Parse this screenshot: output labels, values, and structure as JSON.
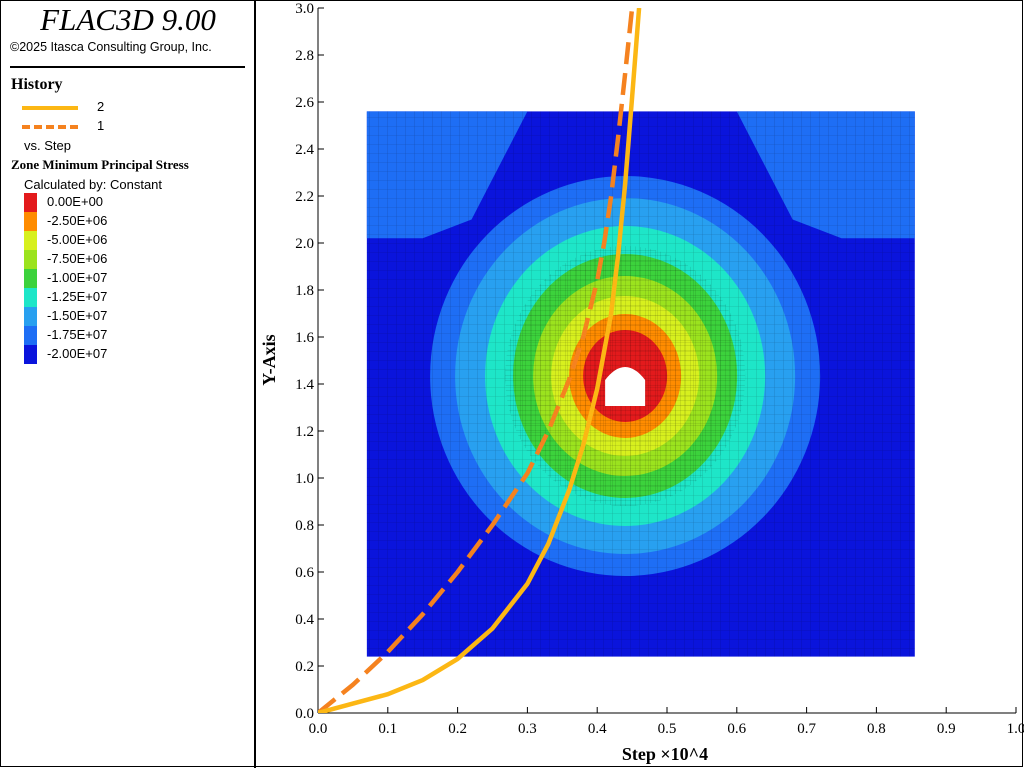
{
  "app": {
    "title": "FLAC3D 9.00",
    "copyright": "©2025 Itasca Consulting Group, Inc."
  },
  "legend": {
    "history_heading": "History",
    "entries": [
      {
        "label": "2",
        "color": "#fcb714",
        "style": "solid"
      },
      {
        "label": "1",
        "color": "#f5821f",
        "style": "dashed"
      }
    ],
    "versus": "vs. Step",
    "contour_title": "Zone Minimum Principal Stress",
    "calculated_by": "Calculated by: Constant",
    "colorbar": [
      {
        "label": "0.00E+00",
        "color": "#e31a1c"
      },
      {
        "label": "-2.50E+06",
        "color": "#ff8c00"
      },
      {
        "label": "-5.00E+06",
        "color": "#d7f01e"
      },
      {
        "label": "-7.50E+06",
        "color": "#9be31e"
      },
      {
        "label": "-1.00E+07",
        "color": "#3cd23c"
      },
      {
        "label": "-1.25E+07",
        "color": "#1ee6c8"
      },
      {
        "label": "-1.50E+07",
        "color": "#28a0f0"
      },
      {
        "label": "-1.75E+07",
        "color": "#1e6ef5"
      },
      {
        "label": "-2.00E+07",
        "color": "#0a14dc"
      }
    ]
  },
  "chart_data": {
    "type": "line",
    "xlabel": "Step ×10^4",
    "ylabel": "Y-Axis",
    "xlim": [
      0,
      1.0
    ],
    "ylim": [
      0,
      3.0
    ],
    "x_ticks": [
      "0.0",
      "0.1",
      "0.2",
      "0.3",
      "0.4",
      "0.5",
      "0.6",
      "0.7",
      "0.8",
      "0.9",
      "1.0"
    ],
    "y_ticks": [
      "0.0",
      "0.2",
      "0.4",
      "0.6",
      "0.8",
      "1.0",
      "1.2",
      "1.4",
      "1.6",
      "1.8",
      "2.0",
      "2.2",
      "2.4",
      "2.6",
      "2.8",
      "3.0"
    ],
    "series": [
      {
        "name": "2",
        "color": "#fcb714",
        "style": "solid",
        "x": [
          0.0,
          0.05,
          0.1,
          0.15,
          0.2,
          0.25,
          0.3,
          0.33,
          0.36,
          0.38,
          0.4,
          0.42,
          0.43,
          0.44,
          0.45,
          0.46
        ],
        "y": [
          0.0,
          0.04,
          0.08,
          0.14,
          0.23,
          0.36,
          0.55,
          0.72,
          0.95,
          1.14,
          1.38,
          1.7,
          1.95,
          2.25,
          2.62,
          3.0
        ]
      },
      {
        "name": "1",
        "color": "#f5821f",
        "style": "dashed",
        "x": [
          0.0,
          0.05,
          0.1,
          0.15,
          0.2,
          0.25,
          0.3,
          0.33,
          0.36,
          0.38,
          0.4,
          0.41,
          0.42,
          0.43,
          0.44,
          0.45
        ],
        "y": [
          0.0,
          0.12,
          0.26,
          0.42,
          0.6,
          0.8,
          1.02,
          1.2,
          1.42,
          1.6,
          1.84,
          2.0,
          2.2,
          2.45,
          2.72,
          3.0
        ]
      }
    ]
  },
  "contour_plot": {
    "x_range": [
      0.07,
      0.855
    ],
    "y_range": [
      0.24,
      2.56
    ],
    "hole_center": [
      0.44,
      1.4
    ]
  }
}
